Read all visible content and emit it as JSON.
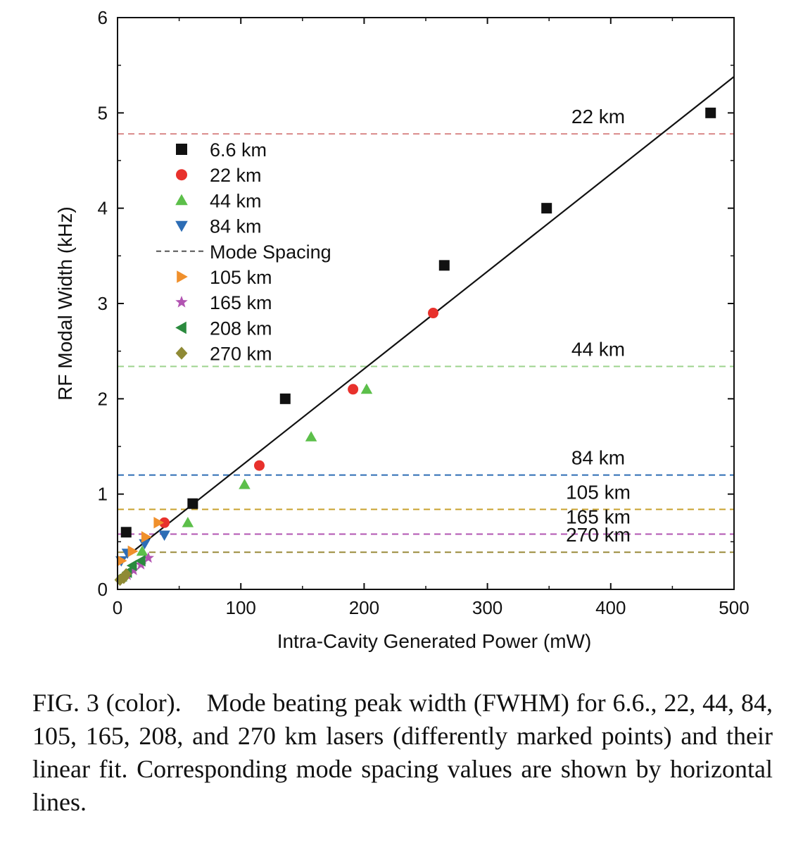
{
  "chart_data": {
    "type": "scatter",
    "xlabel": "Intra-Cavity Generated Power (mW)",
    "ylabel": "RF Modal Width (kHz)",
    "xlim": [
      0,
      500
    ],
    "ylim": [
      0,
      6
    ],
    "xticks": [
      0,
      100,
      200,
      300,
      400,
      500
    ],
    "yticks": [
      0,
      1,
      2,
      3,
      4,
      5,
      6
    ],
    "grid": false,
    "legend_placement": "upper-left",
    "series": [
      {
        "name": "6.6 km",
        "marker": "square",
        "color": "#111111",
        "x": [
          7,
          61,
          136,
          265,
          348,
          481
        ],
        "y": [
          0.6,
          0.9,
          2.0,
          3.4,
          4.0,
          5.0
        ]
      },
      {
        "name": "22  km",
        "marker": "circle",
        "color": "#e8312c",
        "x": [
          38,
          115,
          191,
          256
        ],
        "y": [
          0.7,
          1.3,
          2.1,
          2.9
        ]
      },
      {
        "name": "44  km",
        "marker": "triangle-up",
        "color": "#5cbf4a",
        "x": [
          20,
          57,
          103,
          157,
          202
        ],
        "y": [
          0.4,
          0.7,
          1.1,
          1.6,
          2.1
        ]
      },
      {
        "name": "84  km",
        "marker": "triangle-down",
        "color": "#2d6db5",
        "x": [
          3,
          8,
          22,
          38
        ],
        "y": [
          0.3,
          0.38,
          0.48,
          0.57
        ]
      },
      {
        "name": "105 km",
        "marker": "triangle-right",
        "color": "#f0902c",
        "x": [
          3,
          12,
          23,
          33
        ],
        "y": [
          0.3,
          0.4,
          0.55,
          0.7
        ]
      },
      {
        "name": "165 km",
        "marker": "star",
        "color": "#b254b2",
        "x": [
          8,
          13,
          19,
          25
        ],
        "y": [
          0.15,
          0.2,
          0.26,
          0.33
        ]
      },
      {
        "name": "208 km",
        "marker": "triangle-left",
        "color": "#2b8a3e",
        "x": [
          4,
          8,
          12,
          19
        ],
        "y": [
          0.14,
          0.18,
          0.25,
          0.3
        ]
      },
      {
        "name": "270 km",
        "marker": "diamond",
        "color": "#8f8a35",
        "x": [
          2,
          5,
          7
        ],
        "y": [
          0.1,
          0.12,
          0.16
        ]
      }
    ],
    "fit_line": {
      "x": [
        0,
        500
      ],
      "y": [
        0.27,
        5.38
      ],
      "color": "#111111"
    },
    "mode_spacing": {
      "legend_label": "Mode Spacing",
      "lines": [
        {
          "label": "22 km",
          "y": 4.78,
          "color": "#d98a8a"
        },
        {
          "label": "44 km",
          "y": 2.34,
          "color": "#9ed48f"
        },
        {
          "label": "84 km",
          "y": 1.2,
          "color": "#2d6db5"
        },
        {
          "label": "105 km",
          "y": 0.84,
          "color": "#c8a22f"
        },
        {
          "label": "165 km",
          "y": 0.58,
          "color": "#b254b2"
        },
        {
          "label": "270 km",
          "y": 0.39,
          "color": "#9a8a3a"
        }
      ]
    }
  },
  "caption": "FIG. 3 (color). Mode beating peak width (FWHM) for 6.6., 22, 44, 84, 105, 165, 208, and 270 km lasers (differently marked points) and their linear fit. Corresponding mode spacing values are shown by horizontal lines."
}
